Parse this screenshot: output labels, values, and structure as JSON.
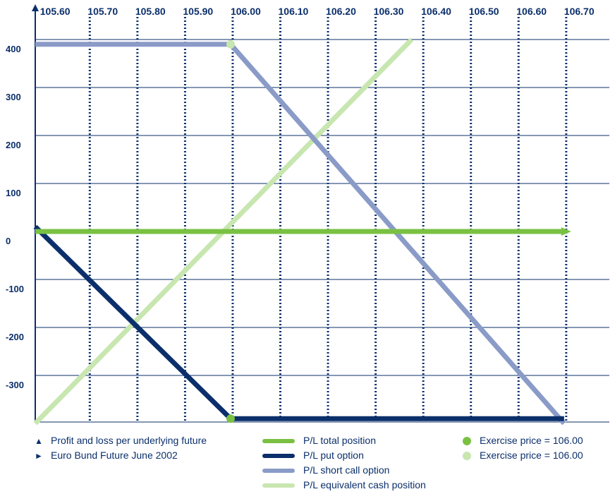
{
  "chart_data": {
    "type": "line",
    "title": "",
    "xlabel": "",
    "ylabel": "",
    "x_ticks": [
      "105.60",
      "105.70",
      "105.80",
      "105.90",
      "106.00",
      "106.10",
      "106.20",
      "106.30",
      "106.40",
      "106.50",
      "106.60",
      "106.70"
    ],
    "y_ticks": [
      "400",
      "300",
      "200",
      "100",
      "0",
      "-100",
      "-200",
      "-300"
    ],
    "xlim": [
      105.59,
      106.7
    ],
    "ylim": [
      -400,
      400
    ],
    "grid": true,
    "series": [
      {
        "name": "P/L total position",
        "color": "#7ac143",
        "x": [
          105.59,
          106.7
        ],
        "y": [
          0,
          0
        ]
      },
      {
        "name": "P/L put option",
        "color": "#0b2f6b",
        "x": [
          105.59,
          106.0,
          106.7
        ],
        "y": [
          10,
          -390,
          -390
        ]
      },
      {
        "name": "P/L short call option",
        "color": "#8a9bc7",
        "x": [
          105.59,
          106.0,
          106.7
        ],
        "y": [
          390,
          390,
          -400
        ]
      },
      {
        "name": "P/L equivalent cash position",
        "color": "#c8e6b0",
        "x": [
          105.59,
          106.38
        ],
        "y": [
          -400,
          400
        ]
      }
    ],
    "markers": [
      {
        "name": "Exercise price = 106.00",
        "color": "#7ac143",
        "x": 106.0,
        "y": -390
      },
      {
        "name": "Exercise price = 106.00",
        "color": "#c8e6b0",
        "x": 106.0,
        "y": 390
      }
    ]
  },
  "legend": {
    "col1": [
      {
        "symbol": "▲",
        "label": "Profit and loss per underlying future"
      },
      {
        "symbol": "►",
        "label": "Euro Bund Future June 2002"
      }
    ],
    "col2": [
      {
        "label": "P/L total position",
        "color": "#7ac143"
      },
      {
        "label": "P/L put option",
        "color": "#0b2f6b"
      },
      {
        "label": "P/L short call option",
        "color": "#8a9bc7"
      },
      {
        "label": "P/L equivalent cash position",
        "color": "#c8e6b0"
      }
    ],
    "col3": [
      {
        "label": "Exercise price = 106.00",
        "color": "#7ac143"
      },
      {
        "label": "Exercise price = 106.00",
        "color": "#c8e6b0"
      }
    ]
  }
}
